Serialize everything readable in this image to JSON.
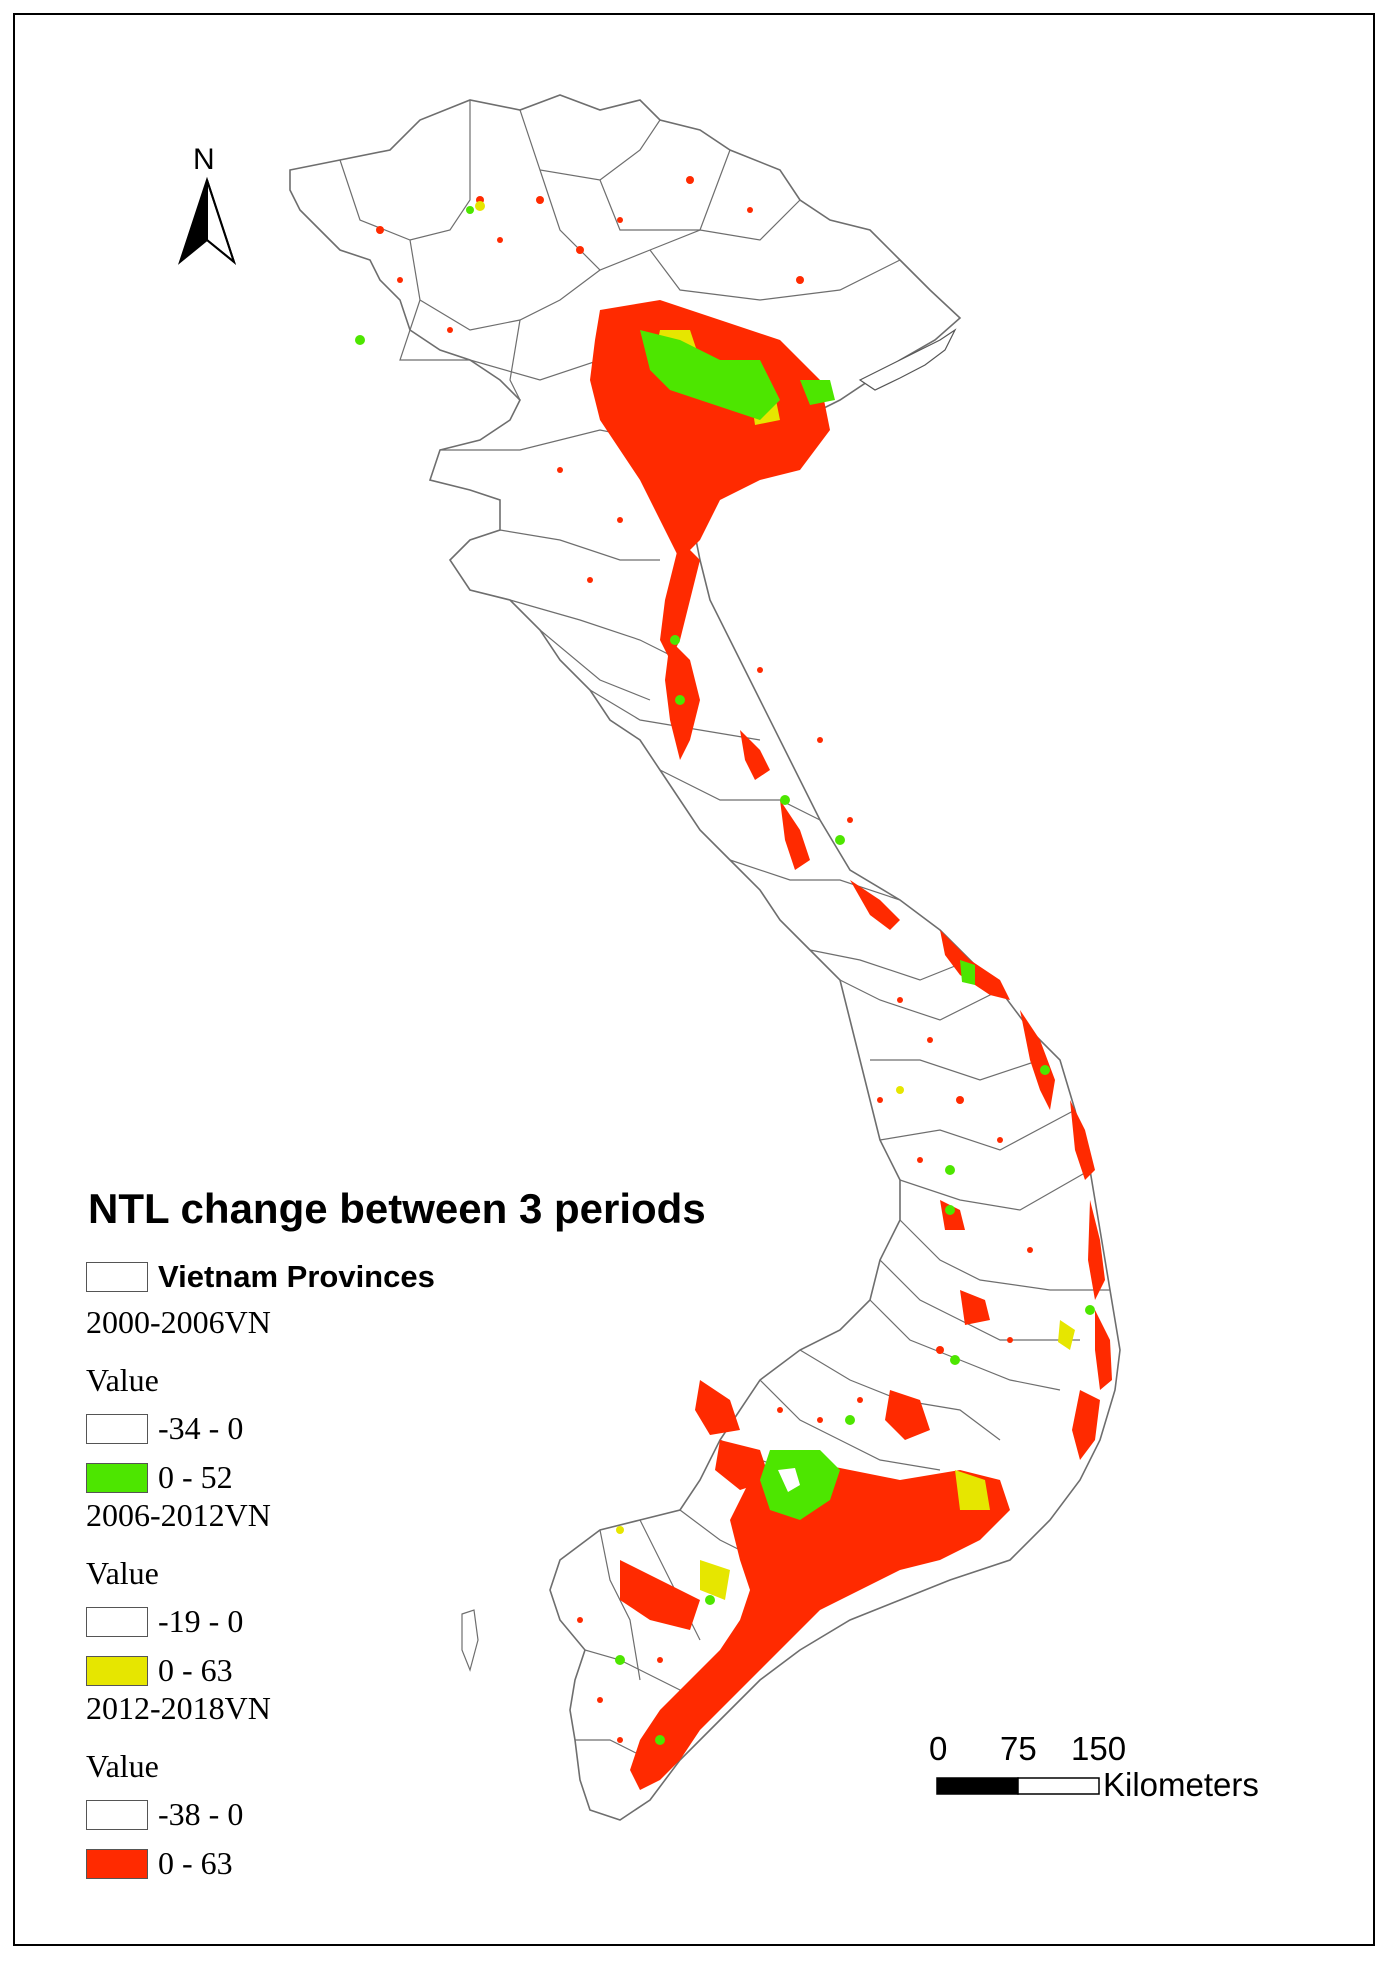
{
  "legend": {
    "title": "NTL change between 3 periods",
    "provinces_label": "Vietnam Provinces",
    "groups": [
      {
        "name": "2000-2006VN",
        "field": "Value",
        "classes": [
          {
            "range": "-34 - 0",
            "color": "#ffffff"
          },
          {
            "range": "0 - 52",
            "color": "#4de600"
          }
        ]
      },
      {
        "name": "2006-2012VN",
        "field": "Value",
        "classes": [
          {
            "range": "-19 - 0",
            "color": "#ffffff"
          },
          {
            "range": "0 - 63",
            "color": "#e6e600"
          }
        ]
      },
      {
        "name": "2012-2018VN",
        "field": "Value",
        "classes": [
          {
            "range": "-38 - 0",
            "color": "#ffffff"
          },
          {
            "range": "0 - 63",
            "color": "#ff2a00"
          }
        ]
      }
    ]
  },
  "north_arrow": {
    "label": "N"
  },
  "scale_bar": {
    "ticks": [
      "0",
      "75",
      "150"
    ],
    "unit": "Kilometers"
  },
  "colors": {
    "green": "#4de600",
    "yellow": "#e6e600",
    "red": "#ff2a00",
    "boundary": "#6e6e6e"
  }
}
